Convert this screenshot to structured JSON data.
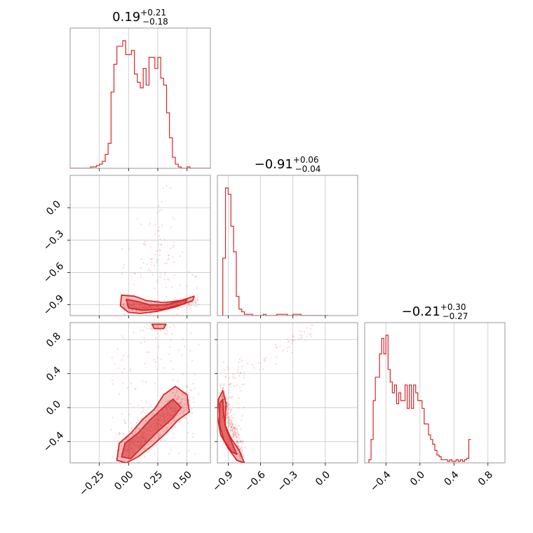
{
  "chart_data": {
    "type": "corner",
    "color": "#d62728",
    "grid": true,
    "parameters": [
      {
        "range": [
          -0.5,
          0.7
        ],
        "ticks": [
          -0.25,
          0.0,
          0.25,
          0.5
        ],
        "tick_labels": [
          "−0.25",
          "0.00",
          "0.25",
          "0.50"
        ],
        "title": {
          "median": "0.19",
          "plus": "+0.21",
          "minus": "−0.18"
        }
      },
      {
        "range": [
          -1.0,
          0.3
        ],
        "ticks": [
          -0.9,
          -0.6,
          -0.3,
          0.0
        ],
        "tick_labels": [
          "−0.9",
          "−0.6",
          "−0.3",
          "0.0"
        ],
        "title": {
          "median": "−0.91",
          "plus": "+0.06",
          "minus": "−0.04"
        }
      },
      {
        "range": [
          -0.65,
          1.0
        ],
        "ticks": [
          -0.4,
          0.0,
          0.4,
          0.8
        ],
        "tick_labels": [
          "−0.4",
          "0.0",
          "0.4",
          "0.8"
        ],
        "title": {
          "median": "−0.21",
          "plus": "+0.30",
          "minus": "−0.27"
        }
      }
    ],
    "histograms": [
      {
        "bin_start": -0.5,
        "bin_width": 0.025,
        "counts": [
          0,
          0,
          0,
          0,
          0,
          0,
          0,
          1,
          1,
          2,
          3,
          5,
          10,
          18,
          55,
          75,
          88,
          88,
          92,
          82,
          82,
          85,
          68,
          62,
          58,
          72,
          60,
          80,
          80,
          72,
          80,
          65,
          60,
          40,
          22,
          8,
          3,
          1,
          0,
          0,
          1,
          0,
          0,
          0,
          0,
          0,
          0,
          0
        ]
      },
      {
        "bin_start": -0.95,
        "bin_width": 0.025,
        "counts": [
          45,
          100,
          95,
          70,
          50,
          15,
          5,
          3,
          1,
          1,
          1,
          0,
          0,
          0,
          0,
          1,
          0,
          0,
          0,
          0,
          1,
          1,
          1,
          1,
          0,
          0,
          1,
          1,
          1,
          0,
          0,
          0,
          0,
          0,
          0,
          0,
          0,
          0,
          0
        ]
      },
      {
        "bin_start": -0.6,
        "bin_width": 0.025,
        "counts": [
          2,
          15,
          40,
          55,
          55,
          70,
          80,
          70,
          82,
          60,
          52,
          45,
          50,
          38,
          45,
          40,
          40,
          50,
          35,
          50,
          35,
          50,
          45,
          40,
          40,
          35,
          25,
          25,
          18,
          15,
          12,
          8,
          5,
          4,
          2,
          2,
          2,
          1,
          2,
          1,
          1,
          2,
          1,
          2,
          1,
          2,
          3,
          15
        ]
      }
    ]
  }
}
